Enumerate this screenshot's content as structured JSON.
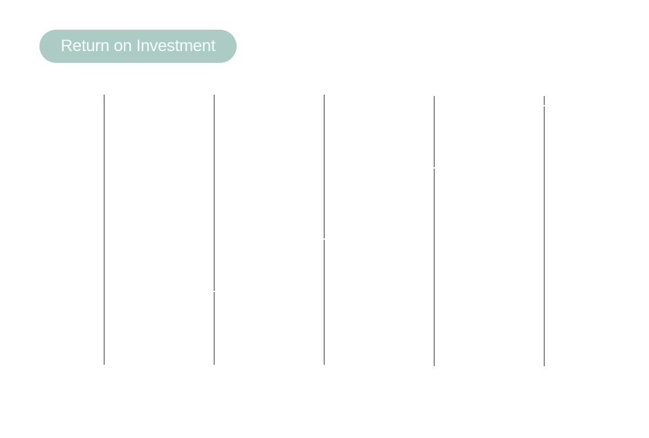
{
  "title": "Return on Investment",
  "colors": {
    "title_pill": "#abcbc4",
    "title_text": "#f4fbf9",
    "lines": "#3a3a3a"
  },
  "columns": 5
}
